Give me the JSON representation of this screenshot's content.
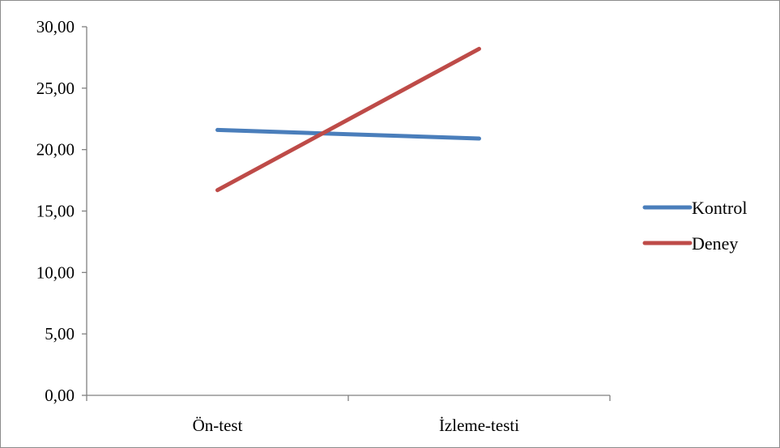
{
  "chart_data": {
    "type": "line",
    "title": "",
    "xlabel": "",
    "ylabel": "",
    "categories": [
      "Ön-test",
      "İzleme-testi"
    ],
    "ylim": [
      0,
      30
    ],
    "yticks": [
      "0,00",
      "5,00",
      "10,00",
      "15,00",
      "20,00",
      "25,00",
      "30,00"
    ],
    "grid": false,
    "legend_position": "right",
    "series": [
      {
        "name": "Kontrol",
        "values": [
          21.6,
          20.9
        ],
        "color": "#4a7ebb"
      },
      {
        "name": "Deney",
        "values": [
          16.7,
          28.2
        ],
        "color": "#be4b48"
      }
    ]
  }
}
